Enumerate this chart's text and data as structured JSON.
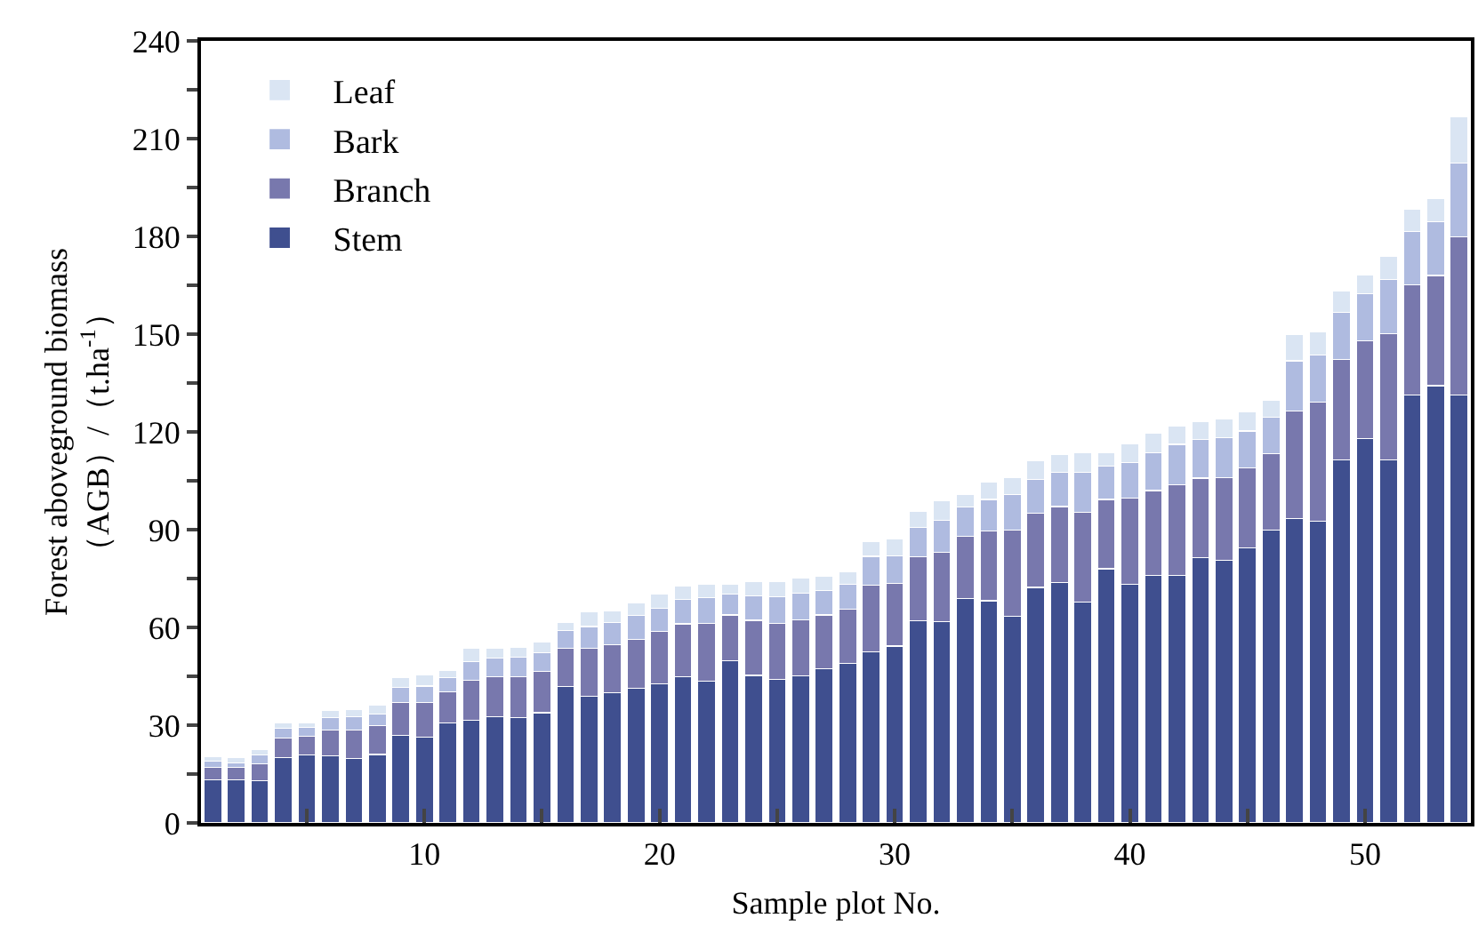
{
  "chart_data": {
    "type": "bar",
    "stacked": true,
    "xlabel": "Sample plot No.",
    "ylabel": "Forest aboveground biomass\n（AGB）/（t.ha$^{-1}$）",
    "x": [
      1,
      2,
      3,
      4,
      5,
      6,
      7,
      8,
      9,
      10,
      11,
      12,
      13,
      14,
      15,
      16,
      17,
      18,
      19,
      20,
      21,
      22,
      23,
      24,
      25,
      26,
      27,
      28,
      29,
      30,
      31,
      32,
      33,
      34,
      35,
      36,
      37,
      38,
      39,
      40,
      41,
      42,
      43,
      44,
      45,
      46,
      47,
      48,
      49,
      50,
      51,
      52,
      53,
      54
    ],
    "xlim": [
      0.5,
      54.5
    ],
    "xticks": [
      {
        "value": 5,
        "label": null
      },
      10,
      {
        "value": 15,
        "label": null
      },
      20,
      {
        "value": 25,
        "label": null
      },
      30,
      {
        "value": 35,
        "label": null
      },
      40,
      {
        "value": 45,
        "label": null
      },
      50
    ],
    "ylim": [
      0,
      240
    ],
    "yticks": [
      0,
      {
        "value": 15,
        "label": null
      },
      30,
      {
        "value": 45,
        "label": null
      },
      60,
      {
        "value": 75,
        "label": null
      },
      90,
      {
        "value": 105,
        "label": null
      },
      120,
      {
        "value": 135,
        "label": null
      },
      150,
      {
        "value": 165,
        "label": null
      },
      180,
      {
        "value": 195,
        "label": null
      },
      210,
      {
        "value": 225,
        "label": null
      },
      240
    ],
    "legend": "top left",
    "series": [
      {
        "name": "Stem",
        "color": "#3f4f8f",
        "values": [
          13.3,
          13.3,
          12.9,
          20,
          20.9,
          20.5,
          19.8,
          21,
          26.9,
          26.3,
          30.7,
          31.4,
          32.7,
          32.3,
          33.8,
          41.8,
          38.9,
          40,
          41.3,
          42.7,
          44.9,
          43.4,
          49.8,
          45.3,
          44,
          45.1,
          47.3,
          48.9,
          52.5,
          54.3,
          62,
          61.8,
          68.9,
          68.2,
          63.4,
          72.3,
          73.8,
          67.8,
          78,
          73.3,
          76,
          76,
          81.5,
          80.5,
          84.5,
          89.8,
          93.4,
          92.5,
          111.5,
          118,
          111.5,
          131.3,
          134.2,
          131.3
        ]
      },
      {
        "name": "Branch",
        "color": "#7878ad",
        "values": [
          3.7,
          3.7,
          5.3,
          6,
          5.8,
          7.9,
          8.8,
          8.8,
          10,
          10.6,
          9.5,
          12.4,
          12.2,
          12.6,
          12.6,
          11.7,
          14.7,
          14.7,
          15.1,
          16,
          16.2,
          17.9,
          14,
          16.9,
          17.3,
          17.3,
          16.5,
          16.7,
          20.4,
          19.1,
          19.6,
          21.3,
          19.1,
          21.3,
          26.4,
          22.8,
          23.3,
          27.5,
          21.3,
          26.3,
          26,
          27.8,
          24.3,
          25.5,
          24.4,
          23.5,
          33.1,
          36.6,
          30.7,
          30,
          38.7,
          33.8,
          33.8,
          48.5
        ]
      },
      {
        "name": "Bark",
        "color": "#afbbe0",
        "values": [
          1.9,
          1.5,
          2.7,
          3,
          2.7,
          3.9,
          4.1,
          3.6,
          4.7,
          5.1,
          4.5,
          5.6,
          5.6,
          6,
          5.8,
          5.6,
          6.7,
          6.7,
          7.2,
          7.1,
          7.4,
          7.8,
          6.4,
          7.4,
          8.1,
          8.1,
          7.5,
          7.7,
          8.9,
          8.6,
          9.1,
          9.8,
          8.9,
          9.8,
          10.9,
          10.4,
          10.5,
          12.2,
          10.1,
          11.1,
          11.6,
          12.4,
          11.8,
          12.2,
          11.4,
          11.2,
          15.3,
          14.5,
          14.5,
          14.4,
          16.5,
          16.4,
          16.5,
          22.7
        ]
      },
      {
        "name": "Leaf",
        "color": "#dae5f3",
        "values": [
          1.4,
          1.5,
          1.6,
          1.7,
          1.3,
          2.2,
          2.2,
          2.9,
          3.1,
          3.4,
          2.2,
          4.1,
          3.1,
          3.1,
          3.4,
          2.5,
          4.4,
          3.7,
          3.8,
          4.4,
          4.2,
          4.2,
          3.1,
          4.6,
          4.8,
          4.8,
          4.5,
          3.8,
          4.6,
          5.3,
          4.9,
          6,
          4,
          5.2,
          5.3,
          5.8,
          5.5,
          6.1,
          4.2,
          5.7,
          6,
          5.6,
          5.7,
          5.8,
          5.9,
          5.1,
          8.2,
          7,
          6.6,
          5.8,
          7.3,
          6.9,
          7,
          14.2
        ]
      }
    ]
  }
}
